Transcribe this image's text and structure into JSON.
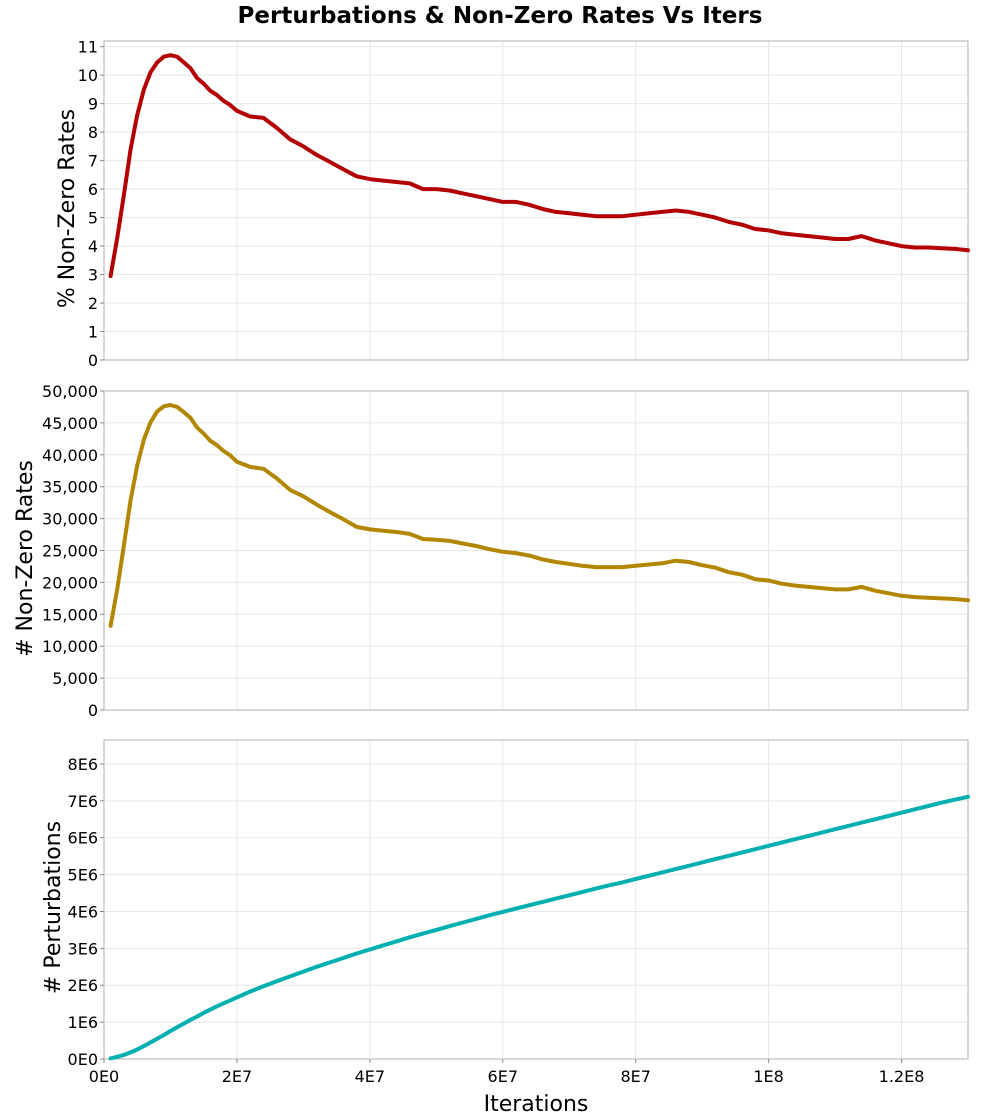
{
  "chart_data": {
    "type": "line",
    "title": "Perturbations & Non-Zero Rates Vs Iters",
    "xlabel": "Iterations",
    "xlim": [
      0,
      130000000
    ],
    "x_ticks": [
      0,
      20000000,
      40000000,
      60000000,
      80000000,
      100000000,
      120000000
    ],
    "x_tick_labels": [
      "0E0",
      "2E7",
      "4E7",
      "6E7",
      "8E7",
      "1E8",
      "1.2E8"
    ],
    "grid": true,
    "x": [
      1000000,
      2000000,
      3000000,
      4000000,
      5000000,
      6000000,
      7000000,
      8000000,
      9000000,
      10000000,
      11000000,
      12000000,
      13000000,
      14000000,
      15000000,
      16000000,
      17000000,
      18000000,
      19000000,
      20000000,
      22000000,
      24000000,
      26000000,
      28000000,
      30000000,
      32000000,
      34000000,
      36000000,
      38000000,
      40000000,
      42000000,
      44000000,
      46000000,
      48000000,
      50000000,
      52000000,
      54000000,
      56000000,
      58000000,
      60000000,
      62000000,
      64000000,
      66000000,
      68000000,
      70000000,
      72000000,
      74000000,
      76000000,
      78000000,
      80000000,
      82000000,
      84000000,
      86000000,
      88000000,
      90000000,
      92000000,
      94000000,
      96000000,
      98000000,
      100000000,
      102000000,
      104000000,
      106000000,
      108000000,
      110000000,
      112000000,
      114000000,
      116000000,
      118000000,
      120000000,
      122000000,
      124000000,
      126000000,
      128000000,
      130000000
    ],
    "panels": [
      {
        "ylabel": "% Non-Zero Rates",
        "ylim": [
          0,
          11.2
        ],
        "y_ticks": [
          0,
          1,
          2,
          3,
          4,
          5,
          6,
          7,
          8,
          9,
          10,
          11
        ],
        "y_tick_labels": [
          "0",
          "1",
          "2",
          "3",
          "4",
          "5",
          "6",
          "7",
          "8",
          "9",
          "10",
          "11"
        ],
        "color": "#b30000",
        "values": [
          2.95,
          4.3,
          5.8,
          7.4,
          8.6,
          9.5,
          10.1,
          10.45,
          10.65,
          10.7,
          10.65,
          10.45,
          10.25,
          9.9,
          9.7,
          9.45,
          9.3,
          9.1,
          8.95,
          8.75,
          8.55,
          8.5,
          8.15,
          7.75,
          7.5,
          7.2,
          6.95,
          6.7,
          6.45,
          6.35,
          6.3,
          6.25,
          6.2,
          6.0,
          6.0,
          5.95,
          5.85,
          5.75,
          5.65,
          5.55,
          5.55,
          5.45,
          5.3,
          5.2,
          5.15,
          5.1,
          5.05,
          5.05,
          5.05,
          5.1,
          5.15,
          5.2,
          5.25,
          5.2,
          5.1,
          5.0,
          4.85,
          4.75,
          4.6,
          4.55,
          4.45,
          4.4,
          4.35,
          4.3,
          4.25,
          4.25,
          4.35,
          4.2,
          4.1,
          4.0,
          3.95,
          3.95,
          3.92,
          3.9,
          3.85
        ]
      },
      {
        "ylabel": "# Non-Zero Rates",
        "ylim": [
          0,
          50000
        ],
        "y_ticks": [
          0,
          5000,
          10000,
          15000,
          20000,
          25000,
          30000,
          35000,
          40000,
          45000,
          50000
        ],
        "y_tick_labels": [
          "0",
          "5,000",
          "10,000",
          "15,000",
          "20,000",
          "25,000",
          "30,000",
          "35,000",
          "40,000",
          "45,000",
          "50,000"
        ],
        "color": "#b38600",
        "values": [
          13200,
          19000,
          25800,
          32900,
          38300,
          42400,
          45100,
          46800,
          47600,
          47800,
          47500,
          46700,
          45800,
          44300,
          43300,
          42200,
          41500,
          40600,
          39900,
          38900,
          38100,
          37800,
          36300,
          34500,
          33500,
          32200,
          31000,
          29900,
          28700,
          28300,
          28100,
          27900,
          27600,
          26800,
          26700,
          26500,
          26100,
          25700,
          25200,
          24800,
          24600,
          24200,
          23600,
          23200,
          22900,
          22600,
          22400,
          22400,
          22400,
          22600,
          22800,
          23000,
          23400,
          23200,
          22700,
          22300,
          21600,
          21200,
          20500,
          20300,
          19800,
          19500,
          19300,
          19100,
          18900,
          18900,
          19300,
          18700,
          18300,
          17900,
          17700,
          17600,
          17500,
          17400,
          17200
        ]
      },
      {
        "ylabel": "# Perturbations",
        "ylim": [
          0,
          8650000
        ],
        "y_ticks": [
          0,
          1000000,
          2000000,
          3000000,
          4000000,
          5000000,
          6000000,
          7000000,
          8000000
        ],
        "y_tick_labels": [
          "0E0",
          "1E6",
          "2E6",
          "3E6",
          "4E6",
          "5E6",
          "6E6",
          "7E6",
          "8E6"
        ],
        "color": "#00b0b0",
        "values": [
          20000,
          60000,
          110000,
          180000,
          260000,
          350000,
          450000,
          550000,
          650000,
          760000,
          860000,
          960000,
          1060000,
          1150000,
          1250000,
          1340000,
          1430000,
          1510000,
          1590000,
          1670000,
          1830000,
          1970000,
          2110000,
          2240000,
          2370000,
          2500000,
          2620000,
          2740000,
          2860000,
          2970000,
          3080000,
          3190000,
          3300000,
          3400000,
          3500000,
          3600000,
          3700000,
          3800000,
          3900000,
          3990000,
          4080000,
          4170000,
          4260000,
          4350000,
          4440000,
          4530000,
          4620000,
          4710000,
          4790000,
          4880000,
          4970000,
          5060000,
          5150000,
          5240000,
          5330000,
          5420000,
          5510000,
          5600000,
          5690000,
          5780000,
          5870000,
          5960000,
          6050000,
          6140000,
          6230000,
          6320000,
          6410000,
          6500000,
          6590000,
          6680000,
          6770000,
          6860000,
          6950000,
          7030000,
          7110000
        ]
      }
    ]
  }
}
